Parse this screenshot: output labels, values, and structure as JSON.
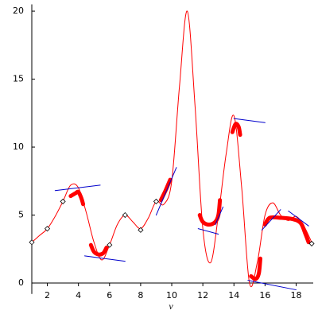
{
  "chart_data": {
    "type": "line",
    "x_label": "v",
    "xlim": [
      1,
      19.1
    ],
    "ylim": [
      -0.8,
      20.5
    ],
    "xticks": [
      2,
      4,
      6,
      8,
      10,
      12,
      14,
      16,
      18
    ],
    "yticks": [
      0,
      5,
      10,
      15,
      20
    ],
    "series": [
      {
        "color": "#ff0000",
        "smooth": true,
        "x": [
          1,
          1.5,
          2,
          2.5,
          3,
          3.5,
          4,
          4.5,
          5,
          5.5,
          6,
          6.5,
          7,
          7.5,
          8,
          8.5,
          9,
          9.5,
          10,
          10.5,
          11,
          11.5,
          12,
          12.5,
          13,
          13.5,
          14,
          14.5,
          15,
          15.5,
          16,
          16.5,
          17,
          17.5,
          18,
          18.5,
          19
        ],
        "values": [
          3,
          3.5,
          4,
          4.9,
          6,
          7.2,
          7.0,
          5.2,
          3,
          1.7,
          2.8,
          4.3,
          5,
          4.5,
          4,
          4.8,
          6,
          5.8,
          7.5,
          14.5,
          20,
          13,
          4,
          1.5,
          5,
          9.5,
          12.3,
          7,
          0,
          1.5,
          5,
          5.9,
          5,
          4.6,
          4.9,
          4.2,
          3
        ]
      },
      {
        "color": "#ff0000",
        "thick": true,
        "x": [
          3.5,
          3.8,
          4.0,
          4.2,
          4.3,
          null,
          4.8,
          5.0,
          5.3,
          5.6,
          5.8,
          null,
          9.3,
          9.6,
          9.9,
          null,
          11.8,
          12.0,
          12.4,
          12.8,
          13.0,
          13.1,
          null,
          13.9,
          14.1,
          14.3,
          14.4,
          null,
          15.1,
          15.4,
          15.6,
          15.7,
          null,
          16.0,
          16.3,
          17.0,
          17.8,
          18.3,
          18.6,
          18.8
        ],
        "values": [
          6.4,
          6.6,
          6.7,
          6.2,
          5.8,
          null,
          2.8,
          2.3,
          2.1,
          2.2,
          2.6,
          null,
          6.1,
          6.8,
          7.6,
          null,
          5.0,
          4.5,
          4.3,
          4.5,
          5.0,
          6.1,
          null,
          11.1,
          11.7,
          11.5,
          10.9,
          null,
          0.5,
          0.3,
          0.7,
          1.8,
          null,
          4.3,
          4.8,
          4.8,
          4.7,
          4.4,
          3.6,
          3.0
        ]
      },
      {
        "color": "#0000cc",
        "x": [
          2.5,
          5.4,
          null,
          4.4,
          7.0,
          null,
          9.0,
          10.3,
          null,
          11.7,
          13.0,
          null,
          12.8,
          13.3,
          null,
          14.0,
          16.0,
          null,
          14.9,
          18.0,
          null,
          15.8,
          17.0,
          null,
          17.5,
          18.8
        ],
        "values": [
          6.8,
          7.2,
          null,
          2.0,
          1.6,
          null,
          5.0,
          8.5,
          null,
          4.0,
          3.6,
          null,
          4.3,
          5.6,
          null,
          12.1,
          11.8,
          null,
          0.2,
          -0.5,
          null,
          3.9,
          5.4,
          null,
          5.3,
          4.2
        ]
      },
      {
        "color": "#000000",
        "marker": "diamond",
        "x": [
          1,
          2,
          3,
          6,
          7,
          8,
          9,
          19
        ],
        "values": [
          3,
          4,
          6,
          2.8,
          5,
          3.9,
          6,
          2.9
        ]
      }
    ]
  }
}
